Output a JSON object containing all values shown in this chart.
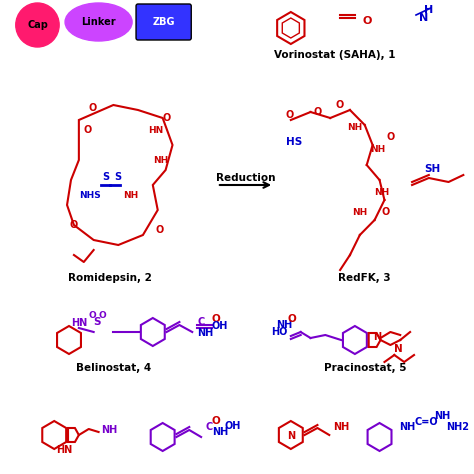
{
  "bg_color": "#ffffff",
  "cap_color": "#ff1a6e",
  "linker_color": "#cc44ff",
  "zbg_color": "#3333ff",
  "dark_red": "#cc0000",
  "blue": "#0000cc",
  "purple": "#7700cc",
  "label_color": "#000000",
  "title": "",
  "labels": {
    "cap": "Cap",
    "linker": "Linker",
    "zbg": "ZBG",
    "vorinostat": "Vorinostat (SAHA), 1",
    "romidepsin": "Romidepsin, 2",
    "redfk": "RedFK, 3",
    "belinostat": "Belinostat, 4",
    "pracinostat": "Pracinostat, 5"
  },
  "reduction_label": "Reduction"
}
